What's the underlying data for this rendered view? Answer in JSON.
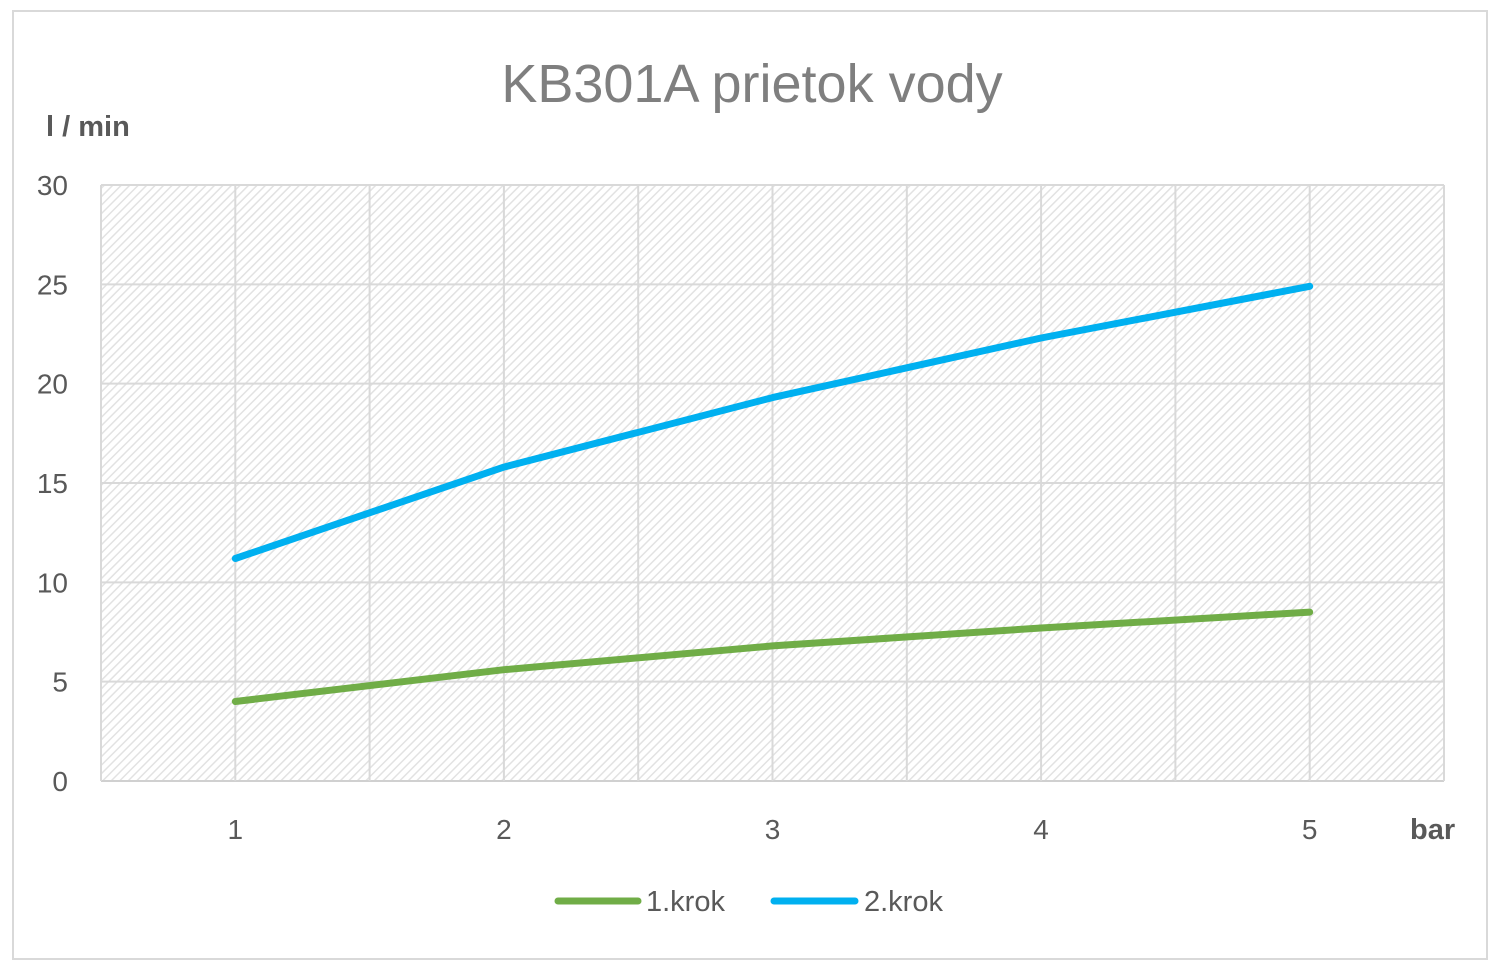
{
  "chart_data": {
    "type": "line",
    "title": "KB301A prietok vody",
    "ylabel": "l / min",
    "xlabel": "bar",
    "categories": [
      "1",
      "2",
      "3",
      "4",
      "5"
    ],
    "ylim": [
      0,
      30
    ],
    "yticks": [
      "0",
      "5",
      "10",
      "15",
      "20",
      "25",
      "30"
    ],
    "grid": true,
    "legend_position": "bottom",
    "series": [
      {
        "name": "1.krok",
        "color": "#70ad47",
        "values": [
          4.0,
          5.6,
          6.8,
          7.7,
          8.5
        ]
      },
      {
        "name": "2.krok",
        "color": "#00b0f0",
        "values": [
          11.2,
          15.8,
          19.3,
          22.3,
          24.9
        ]
      }
    ]
  }
}
